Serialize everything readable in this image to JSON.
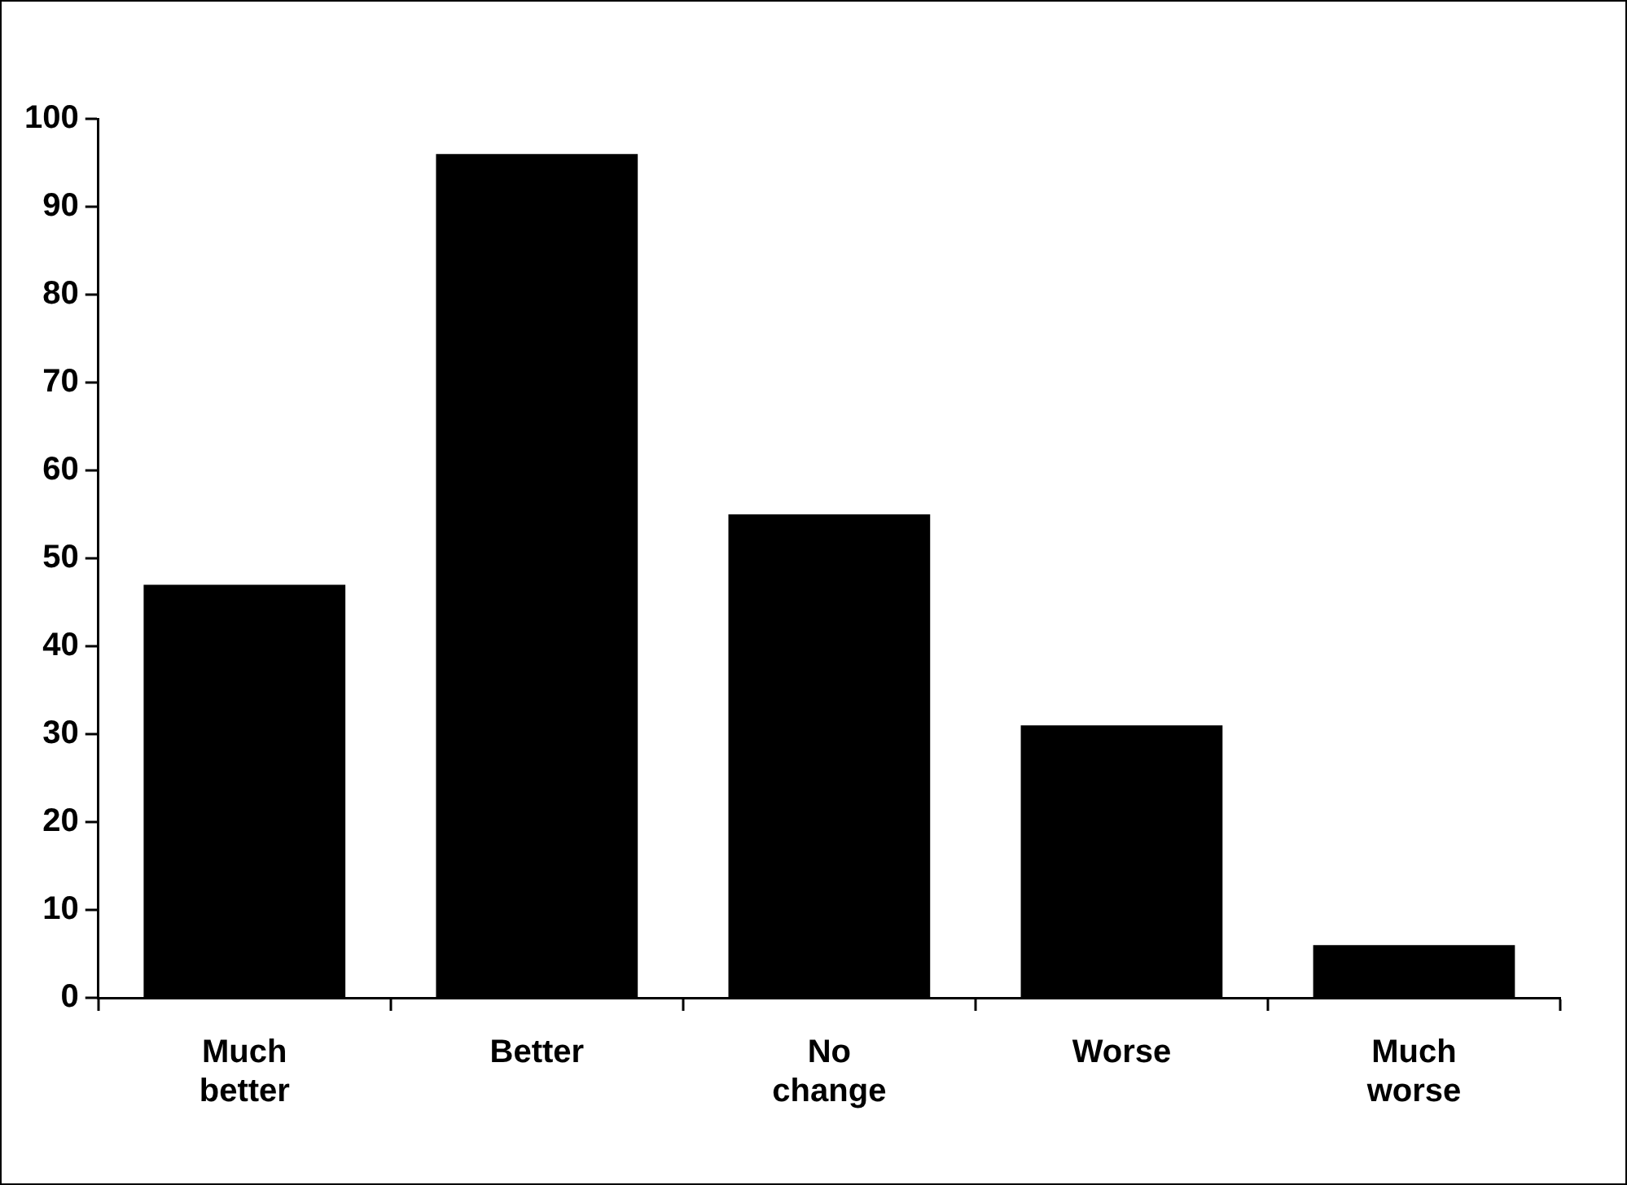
{
  "chart_data": {
    "type": "bar",
    "categories": [
      "Much better",
      "Better",
      "No change",
      "Worse",
      "Much worse"
    ],
    "values": [
      47,
      96,
      55,
      31,
      6
    ],
    "color": "#000000",
    "ylim": [
      0,
      100
    ],
    "yticks": [
      0,
      10,
      20,
      30,
      40,
      50,
      60,
      70,
      80,
      90,
      100
    ],
    "grid": false,
    "legend": false
  }
}
